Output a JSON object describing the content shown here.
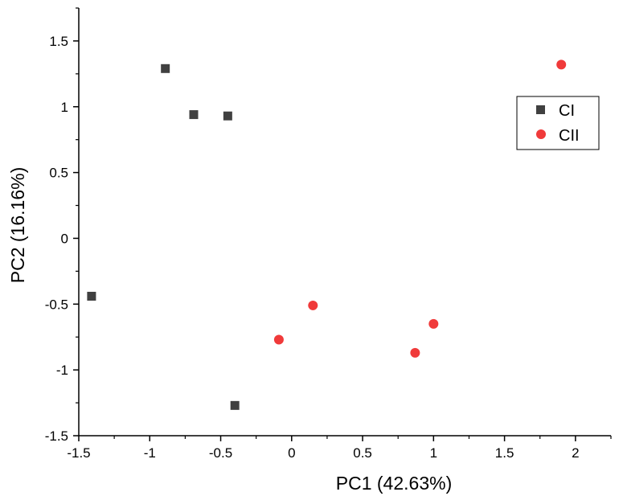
{
  "chart_data": {
    "type": "scatter",
    "title": "",
    "xlabel": "PC1 (42.63%)",
    "ylabel": "PC2 (16.16%)",
    "xlim": [
      -1.5,
      2.25
    ],
    "ylim": [
      -1.5,
      1.75
    ],
    "xticks": [
      -1.5,
      -1,
      -0.5,
      0,
      0.5,
      1,
      1.5,
      2
    ],
    "xtick_labels": [
      "-1.5",
      "-1",
      "-0.5",
      "0",
      "0.5",
      "1",
      "1.5",
      "2"
    ],
    "yticks": [
      -1.5,
      -1,
      -0.5,
      0,
      0.5,
      1,
      1.5
    ],
    "ytick_labels": [
      "-1.5",
      "-1",
      "-0.5",
      "0",
      "0.5",
      "1",
      "1.5"
    ],
    "grid": false,
    "legend_position": "top-right",
    "series": [
      {
        "name": "CI",
        "marker": "square",
        "color": "#404040",
        "points": [
          {
            "x": -0.89,
            "y": 1.29
          },
          {
            "x": -0.69,
            "y": 0.94
          },
          {
            "x": -0.45,
            "y": 0.93
          },
          {
            "x": -1.41,
            "y": -0.44
          },
          {
            "x": -0.4,
            "y": -1.27
          }
        ]
      },
      {
        "name": "CII",
        "marker": "circle",
        "color": "#f03a3a",
        "points": [
          {
            "x": 1.9,
            "y": 1.32
          },
          {
            "x": 0.15,
            "y": -0.51
          },
          {
            "x": -0.09,
            "y": -0.77
          },
          {
            "x": 1.0,
            "y": -0.65
          },
          {
            "x": 0.87,
            "y": -0.87
          }
        ]
      }
    ]
  }
}
